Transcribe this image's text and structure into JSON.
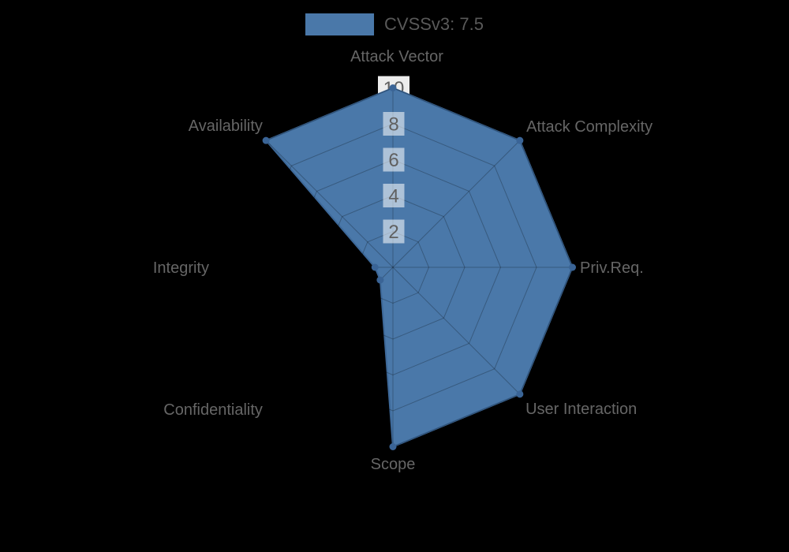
{
  "page": {
    "background": "#000000"
  },
  "chart_data": {
    "type": "radar",
    "title": "",
    "legend_position": "top",
    "legend": [
      {
        "label": "CVSSv3: 7.5",
        "color": "#4a78a9"
      }
    ],
    "axes": [
      "Attack Vector",
      "Attack Complexity",
      "Priv.Req.",
      "User Interaction",
      "Scope",
      "Confidentiality",
      "Integrity",
      "Availability"
    ],
    "series": [
      {
        "name": "CVSSv3: 7.5",
        "values": [
          10,
          10,
          10,
          10,
          10,
          1,
          1,
          10
        ]
      }
    ],
    "scale": {
      "min": 0,
      "max": 10,
      "tick_step": 2,
      "tick_labels": [
        "2",
        "4",
        "6",
        "8",
        "10"
      ]
    },
    "grid": true,
    "colors": {
      "fill": "#4a78a9",
      "border": "#3d6898",
      "point": "#3a6496",
      "grid_line": "rgba(0,0,0,0.25)",
      "axis_label": "#666666",
      "tick_text": "#606060",
      "tick_backdrop": "rgba(255,255,255,0.55)",
      "tick_top_backdrop": "#ededed",
      "legend_text": "#595959",
      "background": "#000000"
    }
  }
}
